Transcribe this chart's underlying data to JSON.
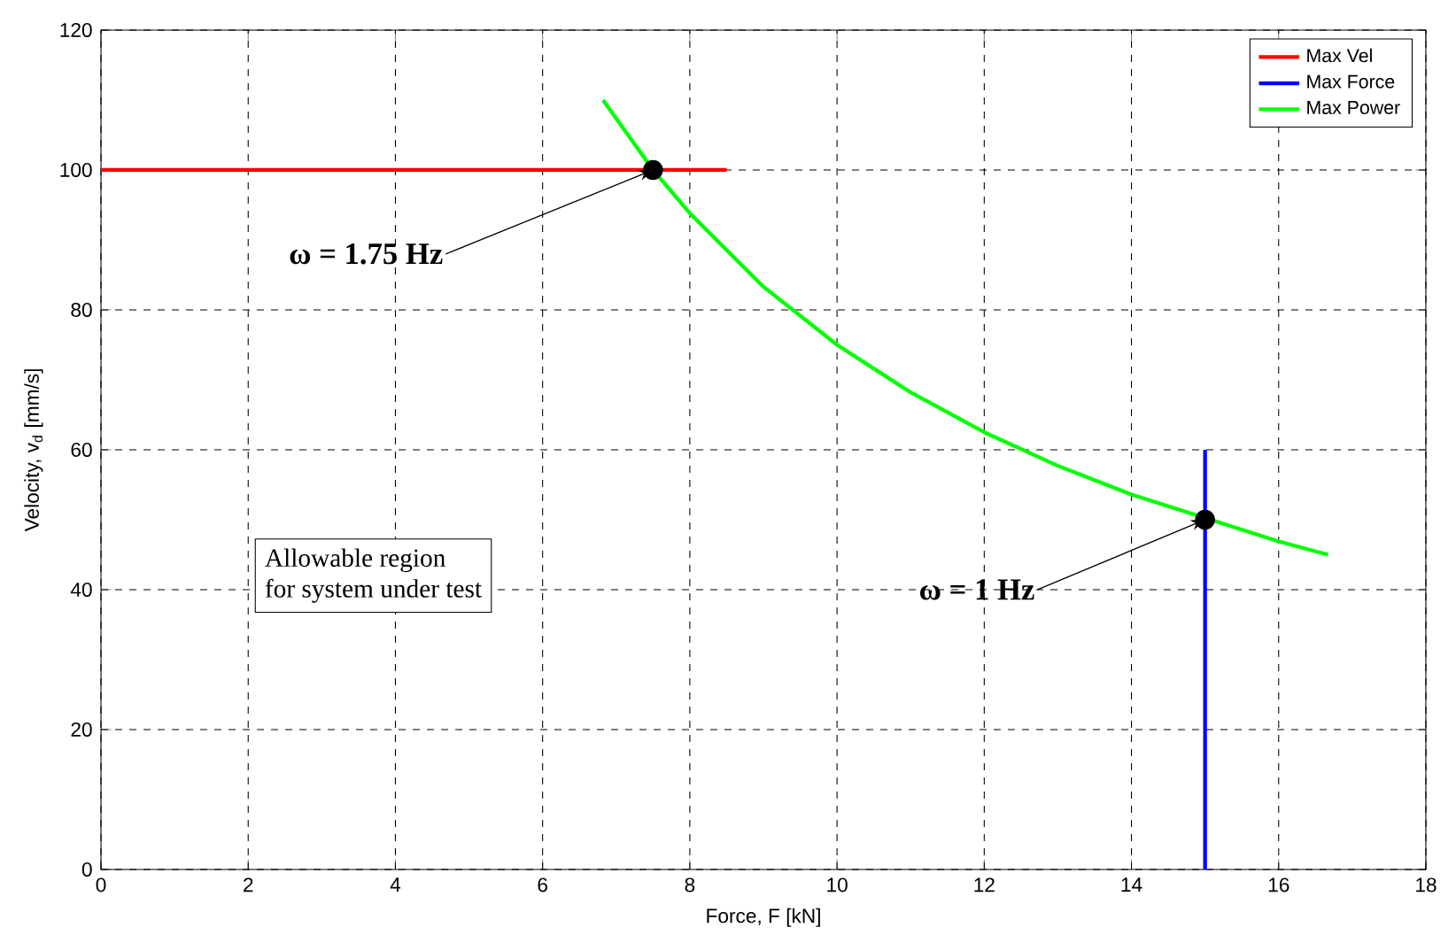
{
  "chart_data": {
    "type": "line",
    "xlabel": "Force, F [kN]",
    "ylabel": "Velocity, v$_{d}$ [mm/s]",
    "xlim": [
      0,
      18
    ],
    "ylim": [
      0,
      120
    ],
    "xticks": [
      0,
      2,
      4,
      6,
      8,
      10,
      12,
      14,
      16,
      18
    ],
    "yticks": [
      0,
      20,
      40,
      60,
      80,
      100,
      120
    ],
    "grid": true,
    "legend": "top right",
    "series": [
      {
        "name": "Max Vel",
        "color": "#ff0000",
        "x": [
          0,
          8.5
        ],
        "values": [
          100,
          100
        ]
      },
      {
        "name": "Max Force",
        "color": "#0000ff",
        "x": [
          15,
          15
        ],
        "values": [
          0,
          60
        ]
      },
      {
        "name": "Max Power",
        "color": "#00ff00",
        "x": [
          6.82,
          7.5,
          8,
          9,
          10,
          11,
          12,
          13,
          14,
          16,
          16.67
        ],
        "values": [
          110,
          100,
          93.8,
          83.3,
          75,
          68.2,
          62.5,
          57.7,
          53.6,
          46.9,
          45
        ]
      },
      {
        "type": "scatter",
        "color": "#000000",
        "x": [
          7.5,
          15
        ],
        "values": [
          100,
          50
        ]
      }
    ],
    "annotations": [
      {
        "text": "ω = 1.75 Hz",
        "x": 7.5,
        "y": 100
      },
      {
        "text": "ω = 1 Hz",
        "x": 15,
        "y": 50
      },
      "Allowable region",
      "for system under test"
    ]
  }
}
